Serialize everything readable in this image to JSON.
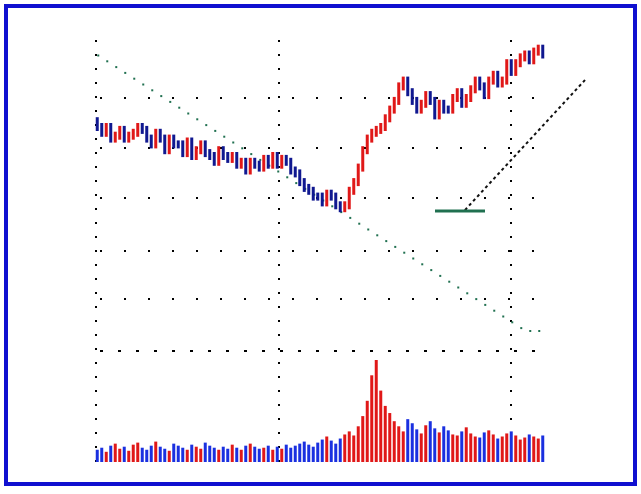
{
  "colors": {
    "frame": "#1010d0",
    "up": "#e01818",
    "down": "#101890",
    "rising_dots": "#1a40e0",
    "ma_long": "#207050",
    "trend_line": "#101010",
    "pink": "#f070b0",
    "volume_up": "#e01818",
    "volume_down": "#1a30e0"
  },
  "chart_data": [
    {
      "type": "candlestick",
      "title": "",
      "xlabel": "",
      "ylabel": "",
      "x_count": 100,
      "ylim": [
        0,
        100
      ],
      "grid": "dotted",
      "series": [
        {
          "kind": "bars",
          "open": [
            72,
            70,
            68,
            70,
            66,
            67,
            69,
            66,
            67,
            68,
            70,
            69,
            66,
            64,
            68,
            66,
            62,
            66,
            64,
            64,
            61,
            65,
            60,
            62,
            64,
            61,
            60,
            58,
            62,
            60,
            59,
            60,
            57,
            58,
            55,
            58,
            57,
            56,
            59,
            57,
            60,
            57,
            59,
            58,
            55,
            54,
            51,
            49,
            48,
            46,
            46,
            44,
            47,
            46,
            43,
            42,
            43,
            48,
            51,
            56,
            62,
            66,
            68,
            69,
            70,
            73,
            76,
            79,
            84,
            86,
            82,
            79,
            76,
            78,
            81,
            79,
            74,
            78,
            76,
            76,
            80,
            82,
            78,
            80,
            83,
            86,
            84,
            81,
            86,
            88,
            85,
            86,
            92,
            89,
            92,
            94,
            95,
            93,
            96,
            97
          ],
          "close": [
            70,
            68,
            70,
            66,
            67,
            69,
            66,
            67,
            68,
            70,
            69,
            66,
            64,
            68,
            66,
            62,
            66,
            64,
            64,
            61,
            65,
            60,
            62,
            64,
            61,
            60,
            58,
            62,
            60,
            59,
            60,
            57,
            58,
            55,
            58,
            57,
            56,
            59,
            57,
            60,
            57,
            59,
            58,
            55,
            54,
            51,
            49,
            48,
            46,
            46,
            44,
            47,
            46,
            43,
            42,
            43,
            48,
            51,
            56,
            62,
            66,
            68,
            69,
            70,
            73,
            76,
            79,
            84,
            86,
            82,
            79,
            76,
            78,
            81,
            79,
            74,
            78,
            76,
            76,
            80,
            82,
            78,
            80,
            83,
            86,
            84,
            81,
            86,
            88,
            85,
            86,
            92,
            89,
            92,
            94,
            95,
            93,
            96,
            97,
            95
          ],
          "dir": [
            0,
            0,
            1,
            0,
            1,
            1,
            0,
            1,
            1,
            1,
            0,
            0,
            0,
            1,
            0,
            0,
            1,
            0,
            0,
            0,
            1,
            0,
            1,
            1,
            0,
            0,
            0,
            1,
            0,
            0,
            1,
            0,
            1,
            0,
            1,
            0,
            0,
            1,
            0,
            1,
            0,
            1,
            0,
            0,
            0,
            0,
            0,
            0,
            0,
            0,
            0,
            1,
            0,
            0,
            0,
            1,
            1,
            1,
            1,
            1,
            1,
            1,
            1,
            1,
            1,
            1,
            1,
            1,
            1,
            0,
            0,
            0,
            1,
            1,
            0,
            0,
            1,
            0,
            0,
            1,
            1,
            0,
            1,
            1,
            1,
            0,
            0,
            1,
            1,
            0,
            1,
            1,
            0,
            1,
            1,
            1,
            0,
            1,
            1,
            0
          ]
        },
        {
          "kind": "ma_long",
          "values": [
            95,
            94,
            93,
            92,
            91,
            90,
            89,
            88,
            87,
            86,
            85,
            84,
            83,
            82,
            81,
            80,
            79,
            78,
            77,
            76,
            75,
            74,
            73,
            72,
            71,
            70,
            69,
            68,
            67,
            66,
            65,
            64,
            63,
            62,
            61,
            60,
            59,
            58,
            57,
            56,
            55,
            54,
            53,
            52,
            51,
            50,
            49,
            48,
            47,
            46,
            45,
            44,
            43,
            42,
            41,
            40,
            39,
            38,
            37,
            36,
            35,
            34,
            33,
            32,
            31,
            30,
            29,
            28,
            27,
            26,
            25,
            24,
            23,
            22,
            21,
            20,
            19,
            18,
            17,
            16,
            15,
            14,
            13,
            12,
            11,
            10,
            9,
            8,
            7,
            6,
            5,
            4,
            3,
            2,
            1,
            0,
            0,
            0,
            0,
            0
          ]
        }
      ]
    },
    {
      "type": "bar",
      "title": "",
      "series_name": "volume",
      "values": [
        12,
        14,
        10,
        16,
        18,
        13,
        15,
        11,
        17,
        19,
        14,
        12,
        16,
        20,
        15,
        13,
        11,
        18,
        16,
        14,
        12,
        17,
        15,
        13,
        19,
        16,
        14,
        12,
        15,
        13,
        17,
        14,
        12,
        16,
        18,
        15,
        13,
        14,
        16,
        12,
        15,
        13,
        17,
        14,
        16,
        18,
        20,
        17,
        15,
        19,
        22,
        25,
        21,
        18,
        23,
        27,
        30,
        26,
        35,
        45,
        60,
        85,
        100,
        70,
        55,
        48,
        40,
        35,
        30,
        42,
        38,
        32,
        28,
        36,
        40,
        33,
        29,
        35,
        31,
        27,
        26,
        30,
        34,
        28,
        25,
        24,
        29,
        31,
        27,
        23,
        25,
        28,
        30,
        26,
        22,
        24,
        27,
        25,
        23,
        26
      ],
      "ylim": [
        0,
        100
      ]
    }
  ]
}
